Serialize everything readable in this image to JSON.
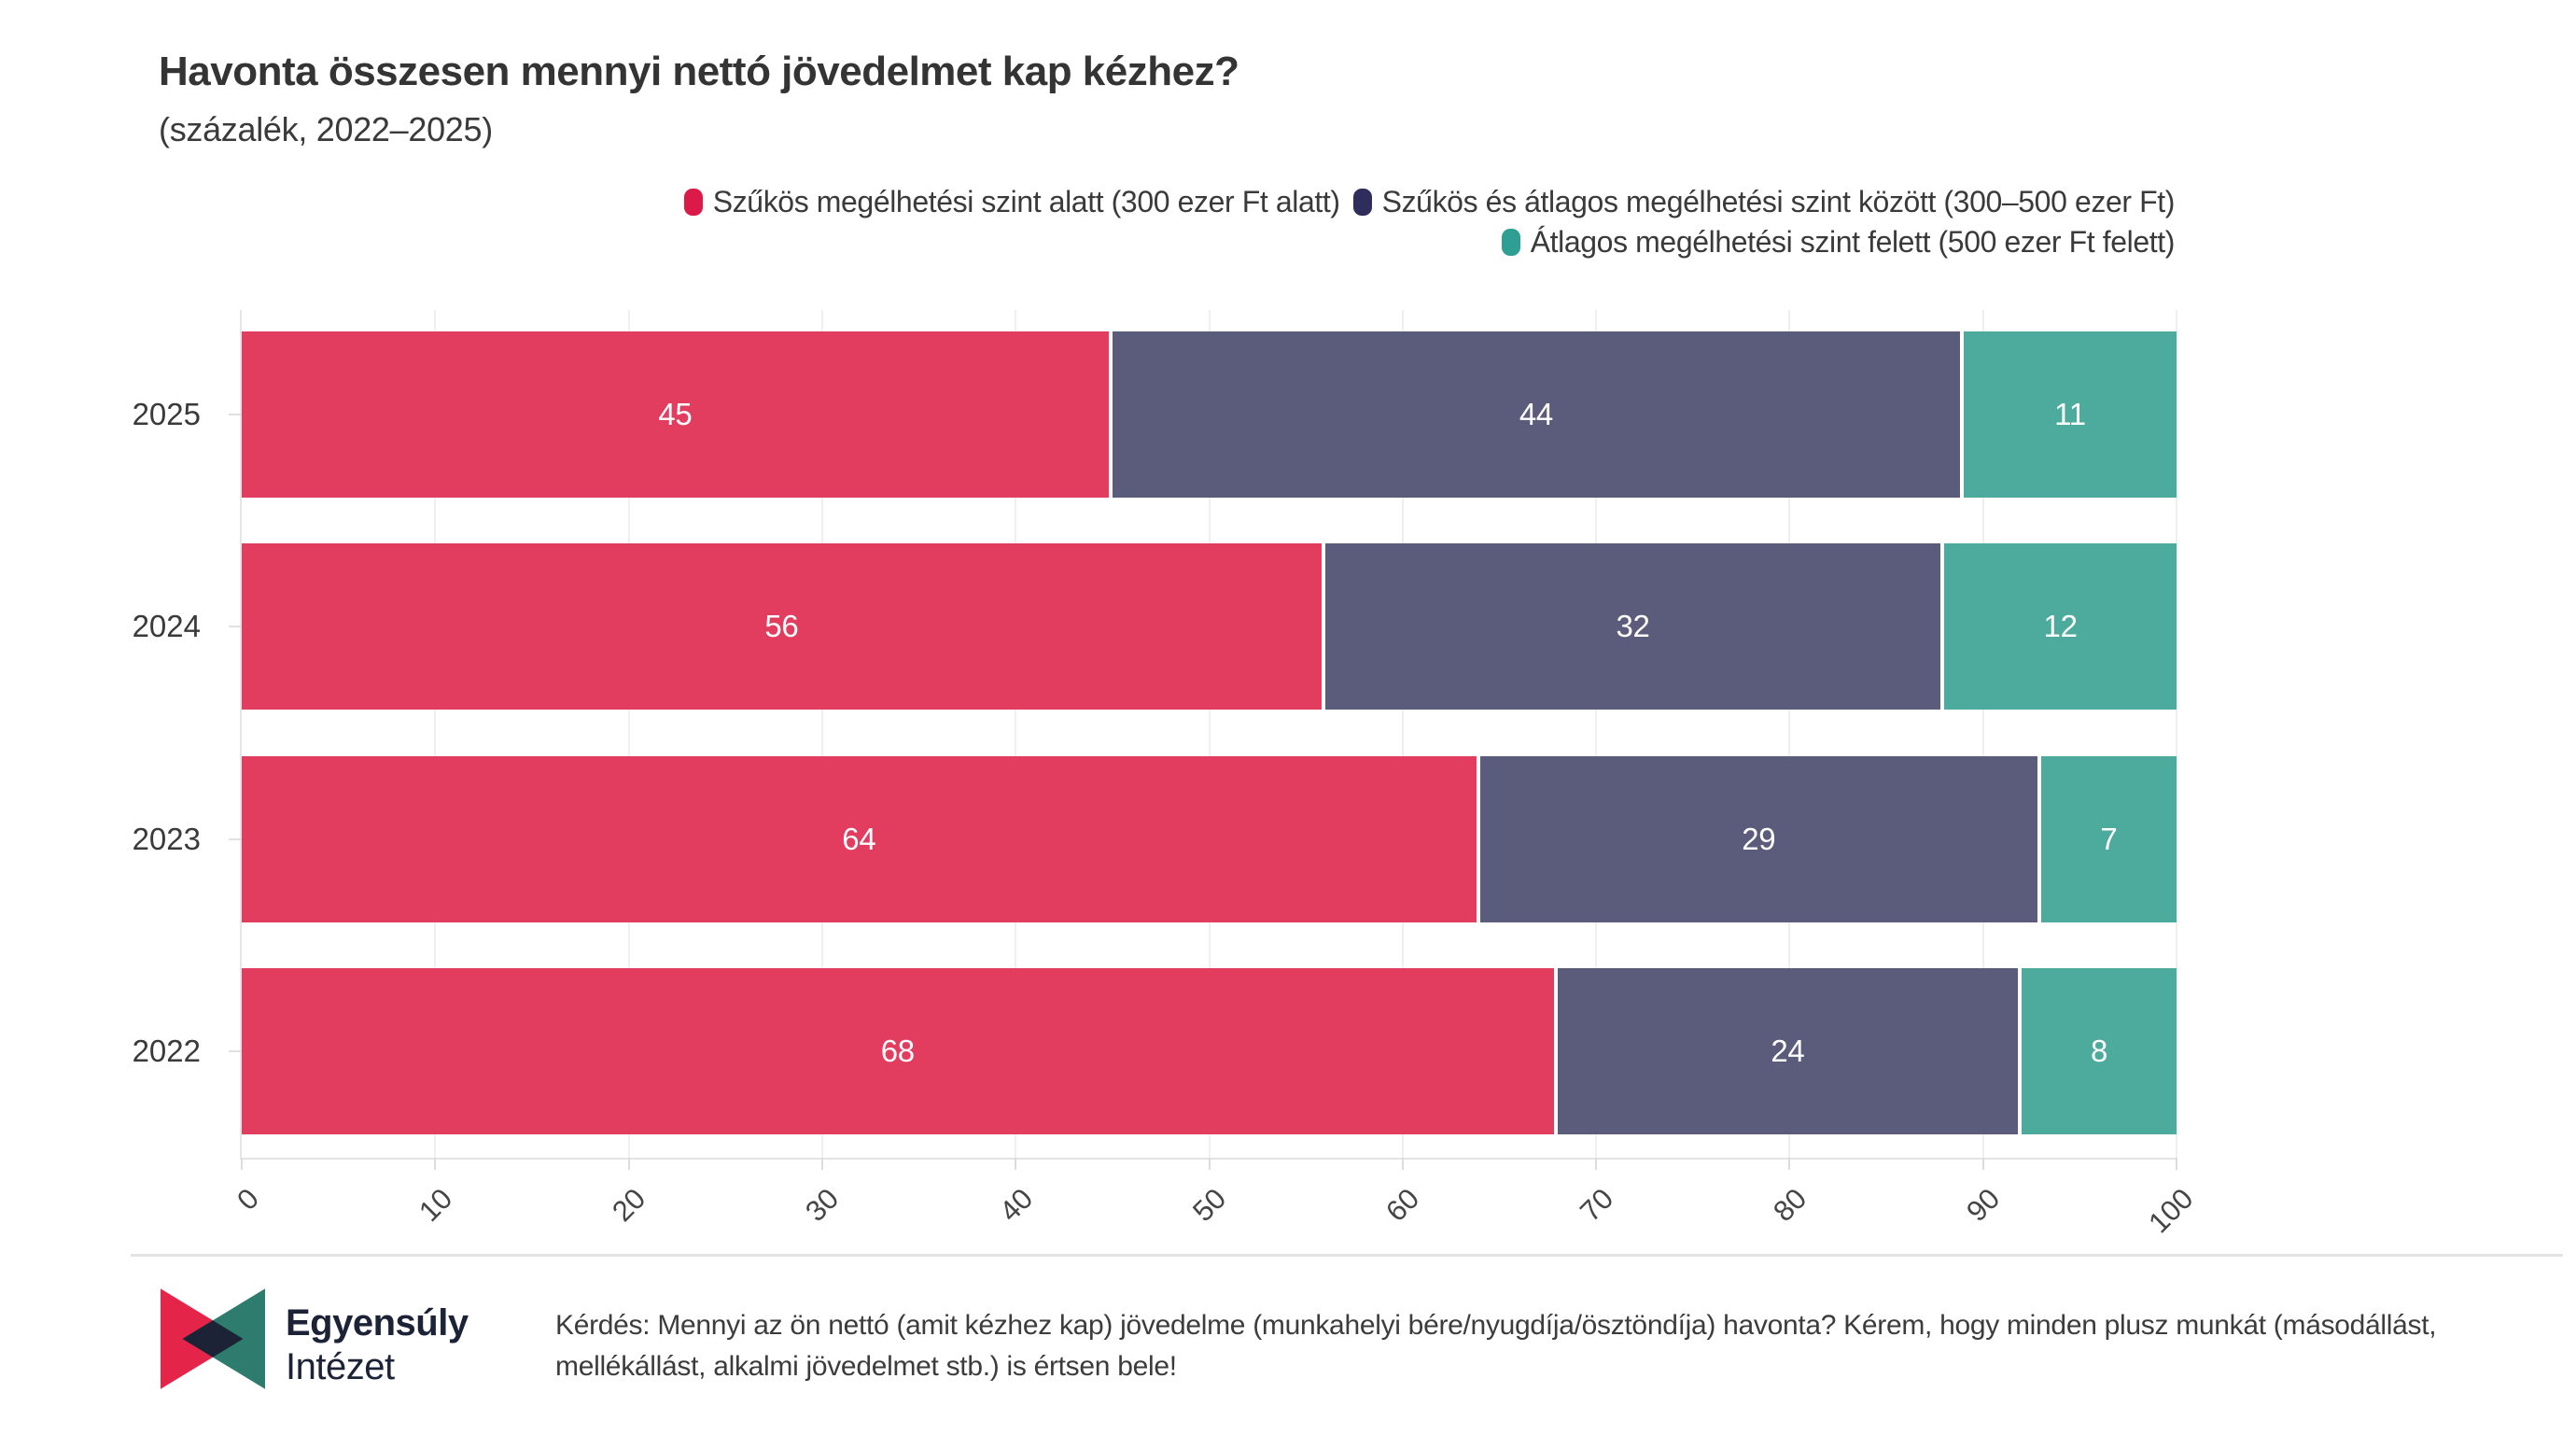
{
  "chart_data": {
    "type": "bar",
    "orientation": "horizontal",
    "stacked": true,
    "title": "Havonta összesen mennyi nettó jövedelmet kap kézhez?",
    "subtitle": "(százalék, 2022–2025)",
    "categories": [
      "2025",
      "2024",
      "2023",
      "2022"
    ],
    "series": [
      {
        "name": "Szűkös megélhetési szint alatt (300 ezer Ft alatt)",
        "color": "#e23c5e",
        "legend_color": "#dc1a49",
        "values": [
          45,
          56,
          64,
          68
        ]
      },
      {
        "name": "Szűkös és átlagos megélhetési szint között (300–500 ezer Ft)",
        "color": "#5b5b7b",
        "legend_color": "#2e2d5b",
        "values": [
          44,
          32,
          29,
          24
        ]
      },
      {
        "name": "Átlagos megélhetési szint felett (500 ezer Ft felett)",
        "color": "#4dab9e",
        "legend_color": "#2f9f93",
        "values": [
          11,
          12,
          7,
          8
        ]
      }
    ],
    "xlim": [
      0,
      100
    ],
    "x_ticks": [
      0,
      10,
      20,
      30,
      40,
      50,
      60,
      70,
      80,
      90,
      100
    ],
    "x_tick_rotation_deg": -45,
    "legend_position": "top-right",
    "legend_rows": [
      [
        0,
        1
      ],
      [
        2
      ]
    ],
    "grid": "vertical-light",
    "value_labels": "inside-center-white"
  },
  "footer": {
    "logo": {
      "line1": "Egyensúly",
      "line2": "Intézet",
      "colors": {
        "red": "#e52449",
        "teal": "#2e7c6e",
        "navy": "#1d2337"
      }
    },
    "question": "Kérdés: Mennyi az ön nettó (amit kézhez kap) jövedelme (munkahelyi bére/nyugdíja/ösztöndíja) havonta? Kérem, hogy minden plusz munkát (másodállást, mellékállást, alkalmi jövedelmet stb.) is értsen bele!"
  }
}
